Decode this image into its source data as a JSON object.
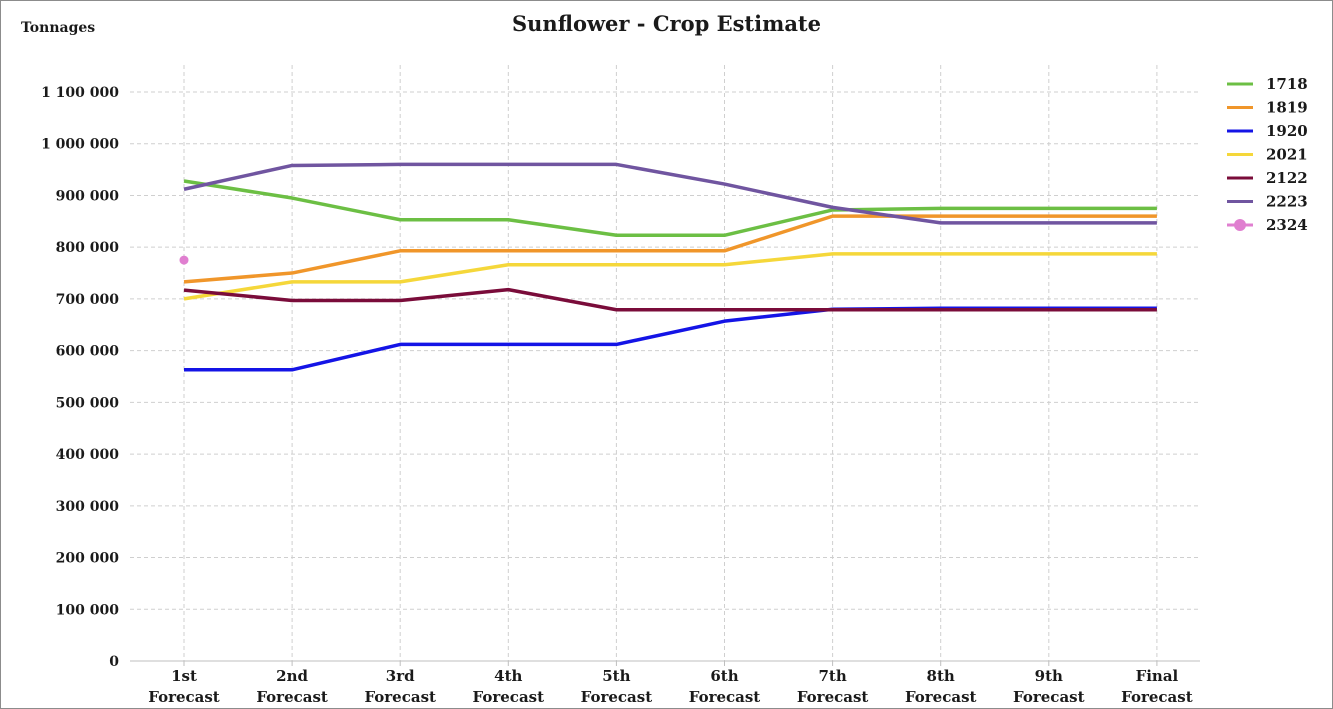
{
  "chart_data": {
    "type": "line",
    "title": "Sunflower - Crop Estimate",
    "ylabel": "Tonnages",
    "xlabel": "",
    "ylim": [
      0,
      1150000
    ],
    "y_ticks": [
      0,
      100000,
      200000,
      300000,
      400000,
      500000,
      600000,
      700000,
      800000,
      900000,
      1000000,
      1100000
    ],
    "y_tick_labels": [
      "0",
      "100 000",
      "200 000",
      "300 000",
      "400 000",
      "500 000",
      "600 000",
      "700 000",
      "800 000",
      "900 000",
      "1 000 000",
      "1 100 000"
    ],
    "categories": [
      [
        "1st",
        "Forecast"
      ],
      [
        "2nd",
        "Forecast"
      ],
      [
        "3rd",
        "Forecast"
      ],
      [
        "4th",
        "Forecast"
      ],
      [
        "5th",
        "Forecast"
      ],
      [
        "6th",
        "Forecast"
      ],
      [
        "7th",
        "Forecast"
      ],
      [
        "8th",
        "Forecast"
      ],
      [
        "9th",
        "Forecast"
      ],
      [
        "Final",
        "Forecast"
      ]
    ],
    "grid": true,
    "legend_position": "right",
    "series": [
      {
        "name": "1718",
        "color": "#6cbf44",
        "values": [
          928000,
          895000,
          853000,
          853000,
          823000,
          823000,
          872000,
          875000,
          875000,
          875000
        ]
      },
      {
        "name": "1819",
        "color": "#f0962a",
        "values": [
          733000,
          750000,
          793000,
          793000,
          793000,
          793000,
          860000,
          860000,
          860000,
          860000
        ]
      },
      {
        "name": "1920",
        "color": "#1414e6",
        "values": [
          563000,
          563000,
          612000,
          612000,
          612000,
          657000,
          680000,
          682000,
          682000,
          682000
        ]
      },
      {
        "name": "2021",
        "color": "#f5d73a",
        "values": [
          700000,
          733000,
          733000,
          766000,
          766000,
          766000,
          787000,
          787000,
          787000,
          787000
        ]
      },
      {
        "name": "2122",
        "color": "#7a0c3a",
        "values": [
          717000,
          697000,
          697000,
          718000,
          679000,
          679000,
          679000,
          679000,
          679000,
          679000
        ]
      },
      {
        "name": "2223",
        "color": "#7055a0",
        "values": [
          912000,
          958000,
          960000,
          960000,
          960000,
          922000,
          877000,
          847000,
          847000,
          847000
        ]
      },
      {
        "name": "2324",
        "color": "#e07fd0",
        "marker": "circle",
        "values": [
          775000,
          null,
          null,
          null,
          null,
          null,
          null,
          null,
          null,
          null
        ]
      }
    ]
  }
}
